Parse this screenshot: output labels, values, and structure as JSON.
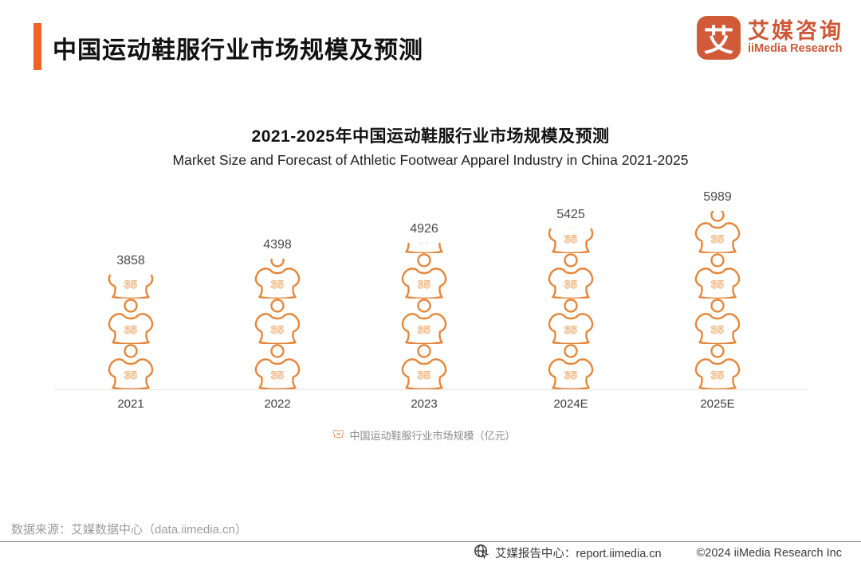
{
  "header": {
    "title": "中国运动鞋服行业市场规模及预测",
    "logo": {
      "mark": "艾",
      "name_cn": "艾媒咨询",
      "name_en": "iiMedia Research"
    }
  },
  "chart": {
    "title": "2021-2025年中国运动鞋服行业市场规模及预测",
    "subtitle": "Market Size and Forecast of Athletic Footwear Apparel Industry in China 2021-2025",
    "icon_number": "35",
    "legend_label": "中国运动鞋服行业市场规模（亿元）"
  },
  "chart_data": {
    "type": "bar",
    "style": "pictogram-jersey-stack",
    "categories": [
      "2021",
      "2022",
      "2023",
      "2024E",
      "2025E"
    ],
    "values": [
      3858,
      4398,
      4926,
      5425,
      5989
    ],
    "title": "2021-2025年中国运动鞋服行业市场规模及预测",
    "subtitle": "Market Size and Forecast of Athletic Footwear Apparel Industry in China 2021-2025",
    "legend": [
      "中国运动鞋服行业市场规模（亿元）"
    ],
    "unit": "亿元",
    "ylim": [
      0,
      6500
    ],
    "grid": false,
    "legend_position": "bottom"
  },
  "footer": {
    "source": "数据来源：艾媒数据中心（data.iimedia.cn）",
    "report_center": "艾媒报告中心：report.iimedia.cn",
    "copyright": "©2024  iiMedia Research Inc"
  },
  "colors": {
    "accent": "#F26327",
    "pictogram": "#E5873B",
    "logo": "#CE5838"
  }
}
